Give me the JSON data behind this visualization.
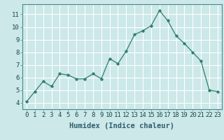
{
  "x": [
    0,
    1,
    2,
    3,
    4,
    5,
    6,
    7,
    8,
    9,
    10,
    11,
    12,
    13,
    14,
    15,
    16,
    17,
    18,
    19,
    20,
    21,
    22,
    23
  ],
  "y": [
    4.1,
    4.9,
    5.7,
    5.3,
    6.3,
    6.2,
    5.9,
    5.9,
    6.3,
    5.9,
    7.5,
    7.1,
    8.1,
    9.4,
    9.7,
    10.1,
    11.3,
    10.5,
    9.3,
    8.7,
    8.0,
    7.3,
    5.0,
    4.9
  ],
  "xlabel": "Humidex (Indice chaleur)",
  "xlim": [
    -0.5,
    23.5
  ],
  "ylim": [
    3.5,
    11.8
  ],
  "yticks": [
    4,
    5,
    6,
    7,
    8,
    9,
    10,
    11
  ],
  "xticks": [
    0,
    1,
    2,
    3,
    4,
    5,
    6,
    7,
    8,
    9,
    10,
    11,
    12,
    13,
    14,
    15,
    16,
    17,
    18,
    19,
    20,
    21,
    22,
    23
  ],
  "line_color": "#2e7d6e",
  "marker_size": 2.5,
  "bg_color": "#cce8e8",
  "grid_color": "#b0d4d4",
  "tick_label_fontsize": 6.5,
  "xlabel_fontsize": 7.5
}
